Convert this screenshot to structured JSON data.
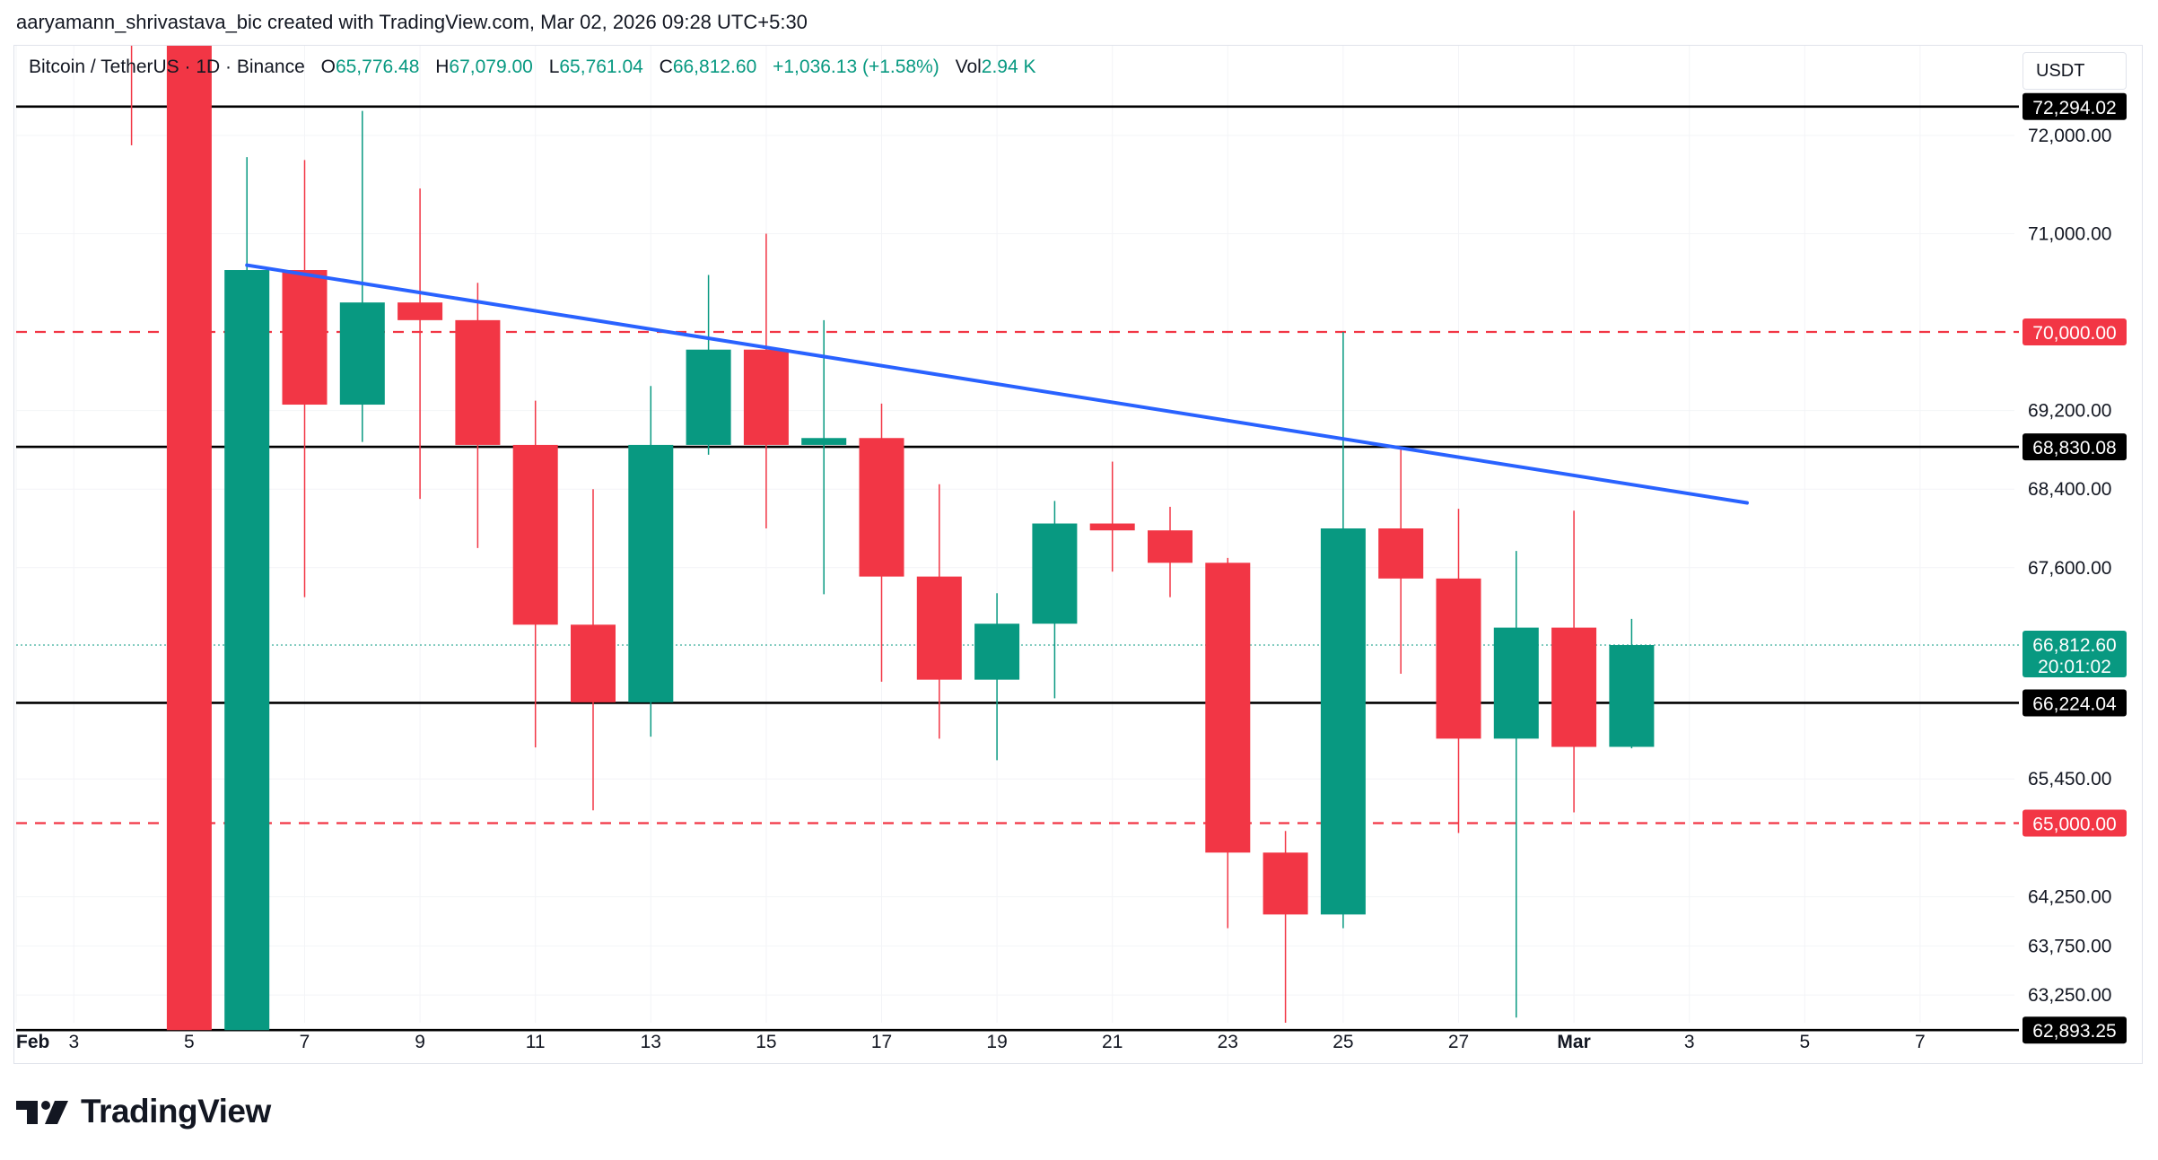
{
  "attribution": "aaryamann_shrivastava_bic created with TradingView.com, Mar 02, 2026 09:28 UTC+5:30",
  "legend": {
    "symbol": "Bitcoin / TetherUS · 1D · Binance",
    "open_label": "O",
    "open": "65,776.48",
    "high_label": "H",
    "high": "67,079.00",
    "low_label": "L",
    "low": "65,761.04",
    "close_label": "C",
    "close": "66,812.60",
    "change": "+1,036.13 (+1.58%)",
    "vol_label": "Vol",
    "vol": "2.94 K"
  },
  "currency": "USDT",
  "brand": "TradingView",
  "colors": {
    "up": "#089981",
    "down": "#f23645",
    "trendline": "#2962ff",
    "support_resistance": "#000000",
    "dashed_level": "#f23645",
    "text": "#131722",
    "axis_text": "#131722"
  },
  "chart_data": {
    "type": "candlestick",
    "symbol": "Bitcoin / TetherUS",
    "interval": "1D",
    "exchange": "Binance",
    "ylim": [
      62600,
      73200
    ],
    "y_ticks": [
      "72,000.00",
      "71,000.00",
      "69,200.00",
      "68,400.00",
      "67,600.00",
      "65,450.00",
      "64,250.00",
      "63,750.00",
      "63,250.00"
    ],
    "y_tick_values": [
      72000,
      71000,
      69200,
      68400,
      67600,
      65450,
      64250,
      63750,
      63250
    ],
    "x_ticks": [
      {
        "day": 2,
        "label": "Feb"
      },
      {
        "day": 3,
        "label": "3"
      },
      {
        "day": 5,
        "label": "5"
      },
      {
        "day": 7,
        "label": "7"
      },
      {
        "day": 9,
        "label": "9"
      },
      {
        "day": 11,
        "label": "11"
      },
      {
        "day": 13,
        "label": "13"
      },
      {
        "day": 15,
        "label": "15"
      },
      {
        "day": 17,
        "label": "17"
      },
      {
        "day": 19,
        "label": "19"
      },
      {
        "day": 21,
        "label": "21"
      },
      {
        "day": 23,
        "label": "23"
      },
      {
        "day": 25,
        "label": "25"
      },
      {
        "day": 27,
        "label": "27"
      },
      {
        "day": 29,
        "label": "Mar"
      },
      {
        "day": 31,
        "label": "3"
      },
      {
        "day": 33,
        "label": "5"
      },
      {
        "day": 35,
        "label": "7"
      }
    ],
    "candles": [
      {
        "date": "Feb 4",
        "day": 4,
        "o": null,
        "h": 73200,
        "l": 71900,
        "c": null
      },
      {
        "date": "Feb 5",
        "day": 5,
        "o": 73200,
        "h": 73200,
        "l": 62600,
        "c": 62893
      },
      {
        "date": "Feb 6",
        "day": 6,
        "o": 62893,
        "h": 71780,
        "l": 62700,
        "c": 70630
      },
      {
        "date": "Feb 7",
        "day": 7,
        "o": 70630,
        "h": 71750,
        "l": 67300,
        "c": 69260
      },
      {
        "date": "Feb 8",
        "day": 8,
        "o": 69260,
        "h": 72250,
        "l": 68880,
        "c": 70300
      },
      {
        "date": "Feb 9",
        "day": 9,
        "o": 70300,
        "h": 71460,
        "l": 68300,
        "c": 70120
      },
      {
        "date": "Feb 10",
        "day": 10,
        "o": 70120,
        "h": 70500,
        "l": 67800,
        "c": 68850
      },
      {
        "date": "Feb 11",
        "day": 11,
        "o": 68850,
        "h": 69300,
        "l": 65770,
        "c": 67020
      },
      {
        "date": "Feb 12",
        "day": 12,
        "o": 67020,
        "h": 68400,
        "l": 65130,
        "c": 66230
      },
      {
        "date": "Feb 13",
        "day": 13,
        "o": 66230,
        "h": 69450,
        "l": 65880,
        "c": 68850
      },
      {
        "date": "Feb 14",
        "day": 14,
        "o": 68850,
        "h": 70580,
        "l": 68750,
        "c": 69820
      },
      {
        "date": "Feb 15",
        "day": 15,
        "o": 69820,
        "h": 71000,
        "l": 68000,
        "c": 68850
      },
      {
        "date": "Feb 16",
        "day": 16,
        "o": 68850,
        "h": 70120,
        "l": 67330,
        "c": 68920
      },
      {
        "date": "Feb 17",
        "day": 17,
        "o": 68920,
        "h": 69270,
        "l": 66440,
        "c": 67510
      },
      {
        "date": "Feb 18",
        "day": 18,
        "o": 67510,
        "h": 68450,
        "l": 65860,
        "c": 66460
      },
      {
        "date": "Feb 19",
        "day": 19,
        "o": 66460,
        "h": 67340,
        "l": 65640,
        "c": 67030
      },
      {
        "date": "Feb 20",
        "day": 20,
        "o": 67030,
        "h": 68280,
        "l": 66270,
        "c": 68050
      },
      {
        "date": "Feb 21",
        "day": 21,
        "o": 68050,
        "h": 68680,
        "l": 67560,
        "c": 67980
      },
      {
        "date": "Feb 22",
        "day": 22,
        "o": 67980,
        "h": 68220,
        "l": 67300,
        "c": 67650
      },
      {
        "date": "Feb 23",
        "day": 23,
        "o": 67650,
        "h": 67700,
        "l": 63930,
        "c": 64700
      },
      {
        "date": "Feb 24",
        "day": 24,
        "o": 64700,
        "h": 64920,
        "l": 62600,
        "c": 64070
      },
      {
        "date": "Feb 25",
        "day": 25,
        "o": 64070,
        "h": 70000,
        "l": 63930,
        "c": 68000
      },
      {
        "date": "Feb 26",
        "day": 26,
        "o": 68000,
        "h": 68830,
        "l": 66520,
        "c": 67490
      },
      {
        "date": "Feb 27",
        "day": 27,
        "o": 67490,
        "h": 68200,
        "l": 64900,
        "c": 65860
      },
      {
        "date": "Feb 28",
        "day": 28,
        "o": 65860,
        "h": 67770,
        "l": 63020,
        "c": 66990
      },
      {
        "date": "Mar 1",
        "day": 29,
        "o": 66990,
        "h": 68180,
        "l": 65110,
        "c": 65776
      },
      {
        "date": "Mar 2",
        "day": 30,
        "o": 65776.48,
        "h": 67079.0,
        "l": 65761.04,
        "c": 66812.6
      }
    ],
    "horizontal_levels": [
      {
        "value": 72294.02,
        "label": "72,294.02",
        "style": "solid",
        "color": "#000000"
      },
      {
        "value": 70000.0,
        "label": "70,000.00",
        "style": "dashed",
        "color": "#f23645"
      },
      {
        "value": 68830.08,
        "label": "68,830.08",
        "style": "solid",
        "color": "#000000"
      },
      {
        "value": 66224.04,
        "label": "66,224.04",
        "style": "solid",
        "color": "#000000"
      },
      {
        "value": 65000.0,
        "label": "65,000.00",
        "style": "dashed",
        "color": "#f23645"
      },
      {
        "value": 62893.25,
        "label": "62,893.25",
        "style": "solid",
        "color": "#000000"
      }
    ],
    "trendline": {
      "color": "#2962ff",
      "start": {
        "day": 6,
        "value": 70680
      },
      "end": {
        "day": 32,
        "value": 68260
      }
    },
    "last_price": {
      "value": 66812.6,
      "label": "66,812.60",
      "countdown": "20:01:02"
    }
  }
}
